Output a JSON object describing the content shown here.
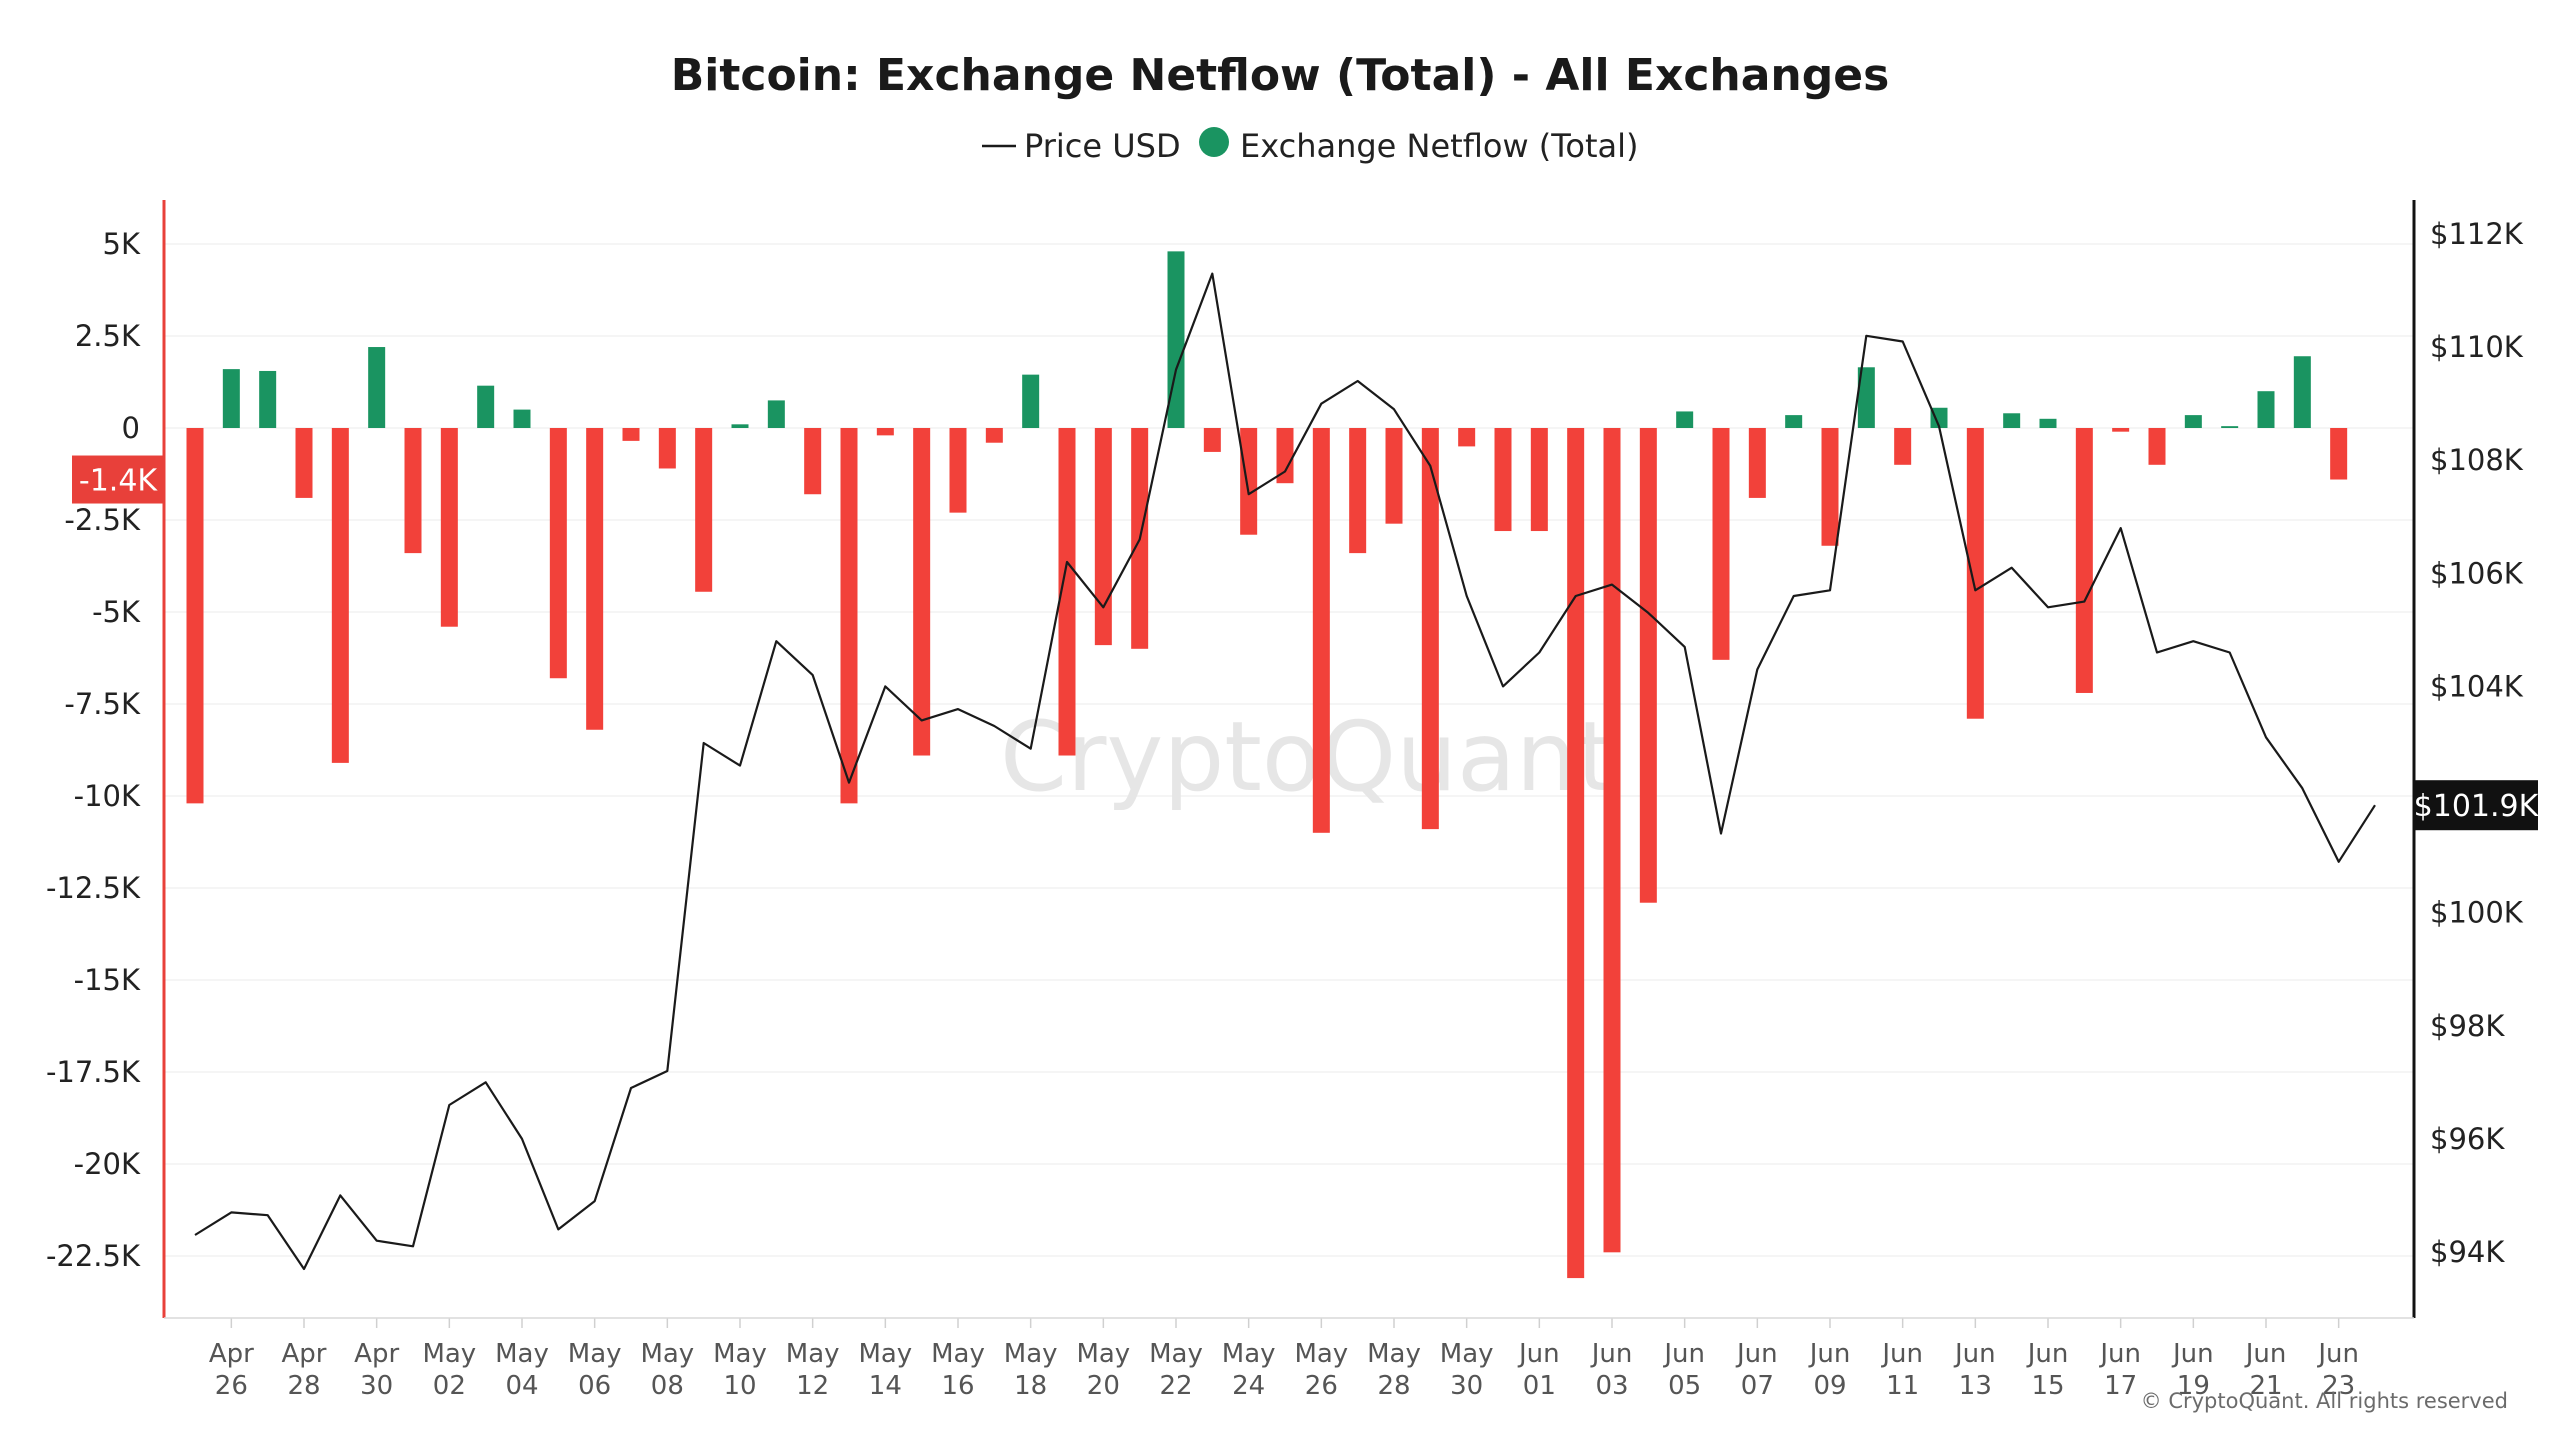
{
  "chart_data": {
    "type": "bar",
    "title": "Bitcoin: Exchange Netflow (Total) - All Exchanges",
    "legend": {
      "placement": "top-center",
      "items": [
        {
          "marker": "line",
          "label": "Price USD"
        },
        {
          "marker": "dot",
          "label": "Exchange Netflow (Total)"
        }
      ]
    },
    "colors": {
      "positive": "#1a9461",
      "negative": "#f2413a",
      "price_line": "#1a1a1a",
      "left_axis": "#e8403a",
      "right_axis": "#111111",
      "grid": "#f2f2f2"
    },
    "grid": true,
    "watermark": "CryptoQuant",
    "copyright": "© CryptoQuant. All rights reserved",
    "x_ticks": [
      {
        "date": "2025-04-26",
        "line1": "Apr",
        "line2": "26"
      },
      {
        "date": "2025-04-28",
        "line1": "Apr",
        "line2": "28"
      },
      {
        "date": "2025-04-30",
        "line1": "Apr",
        "line2": "30"
      },
      {
        "date": "2025-05-02",
        "line1": "May",
        "line2": "02"
      },
      {
        "date": "2025-05-04",
        "line1": "May",
        "line2": "04"
      },
      {
        "date": "2025-05-06",
        "line1": "May",
        "line2": "06"
      },
      {
        "date": "2025-05-08",
        "line1": "May",
        "line2": "08"
      },
      {
        "date": "2025-05-10",
        "line1": "May",
        "line2": "10"
      },
      {
        "date": "2025-05-12",
        "line1": "May",
        "line2": "12"
      },
      {
        "date": "2025-05-14",
        "line1": "May",
        "line2": "14"
      },
      {
        "date": "2025-05-16",
        "line1": "May",
        "line2": "16"
      },
      {
        "date": "2025-05-18",
        "line1": "May",
        "line2": "18"
      },
      {
        "date": "2025-05-20",
        "line1": "May",
        "line2": "20"
      },
      {
        "date": "2025-05-22",
        "line1": "May",
        "line2": "22"
      },
      {
        "date": "2025-05-24",
        "line1": "May",
        "line2": "24"
      },
      {
        "date": "2025-05-26",
        "line1": "May",
        "line2": "26"
      },
      {
        "date": "2025-05-28",
        "line1": "May",
        "line2": "28"
      },
      {
        "date": "2025-05-30",
        "line1": "May",
        "line2": "30"
      },
      {
        "date": "2025-06-01",
        "line1": "Jun",
        "line2": "01"
      },
      {
        "date": "2025-06-03",
        "line1": "Jun",
        "line2": "03"
      },
      {
        "date": "2025-06-05",
        "line1": "Jun",
        "line2": "05"
      },
      {
        "date": "2025-06-07",
        "line1": "Jun",
        "line2": "07"
      },
      {
        "date": "2025-06-09",
        "line1": "Jun",
        "line2": "09"
      },
      {
        "date": "2025-06-11",
        "line1": "Jun",
        "line2": "11"
      },
      {
        "date": "2025-06-13",
        "line1": "Jun",
        "line2": "13"
      },
      {
        "date": "2025-06-15",
        "line1": "Jun",
        "line2": "15"
      },
      {
        "date": "2025-06-17",
        "line1": "Jun",
        "line2": "17"
      },
      {
        "date": "2025-06-19",
        "line1": "Jun",
        "line2": "19"
      },
      {
        "date": "2025-06-21",
        "line1": "Jun",
        "line2": "21"
      },
      {
        "date": "2025-06-23",
        "line1": "Jun",
        "line2": "23"
      }
    ],
    "y_left": {
      "range": [
        -24000,
        6000
      ],
      "ticks": [
        {
          "value": 5000,
          "label": "5K"
        },
        {
          "value": 2500,
          "label": "2.5K"
        },
        {
          "value": 0,
          "label": "0"
        },
        {
          "value": -2500,
          "label": "-2.5K"
        },
        {
          "value": -5000,
          "label": "-5K"
        },
        {
          "value": -7500,
          "label": "-7.5K"
        },
        {
          "value": -10000,
          "label": "-10K"
        },
        {
          "value": -12500,
          "label": "-12.5K"
        },
        {
          "value": -15000,
          "label": "-15K"
        },
        {
          "value": -17500,
          "label": "-17.5K"
        },
        {
          "value": -20000,
          "label": "-20K"
        },
        {
          "value": -22500,
          "label": "-22.5K"
        }
      ],
      "current": {
        "value": -1400,
        "label": "-1.4K"
      }
    },
    "y_right": {
      "range": [
        93000,
        112000
      ],
      "ticks": [
        {
          "value": 112000,
          "label": "$112K"
        },
        {
          "value": 110000,
          "label": "$110K"
        },
        {
          "value": 108000,
          "label": "$108K"
        },
        {
          "value": 106000,
          "label": "$106K"
        },
        {
          "value": 104000,
          "label": "$104K"
        },
        {
          "value": 100000,
          "label": "$100K"
        },
        {
          "value": 98000,
          "label": "$98K"
        },
        {
          "value": 96000,
          "label": "$96K"
        },
        {
          "value": 94000,
          "label": "$94K"
        }
      ],
      "current": {
        "value": 101900,
        "label": "$101.9K"
      }
    },
    "series": [
      {
        "name": "Exchange Netflow (Total)",
        "kind": "bar",
        "points": [
          {
            "date": "2025-04-25",
            "value": -10200
          },
          {
            "date": "2025-04-26",
            "value": 1600
          },
          {
            "date": "2025-04-27",
            "value": 1550
          },
          {
            "date": "2025-04-28",
            "value": -1900
          },
          {
            "date": "2025-04-29",
            "value": -9100
          },
          {
            "date": "2025-04-30",
            "value": 2200
          },
          {
            "date": "2025-05-01",
            "value": -3400
          },
          {
            "date": "2025-05-02",
            "value": -5400
          },
          {
            "date": "2025-05-03",
            "value": 1150
          },
          {
            "date": "2025-05-04",
            "value": 500
          },
          {
            "date": "2025-05-05",
            "value": -6800
          },
          {
            "date": "2025-05-06",
            "value": -8200
          },
          {
            "date": "2025-05-07",
            "value": -350
          },
          {
            "date": "2025-05-08",
            "value": -1100
          },
          {
            "date": "2025-05-09",
            "value": -4450
          },
          {
            "date": "2025-05-10",
            "value": 100
          },
          {
            "date": "2025-05-11",
            "value": 750
          },
          {
            "date": "2025-05-12",
            "value": -1800
          },
          {
            "date": "2025-05-13",
            "value": -10200
          },
          {
            "date": "2025-05-14",
            "value": -200
          },
          {
            "date": "2025-05-15",
            "value": -8900
          },
          {
            "date": "2025-05-16",
            "value": -2300
          },
          {
            "date": "2025-05-17",
            "value": -400
          },
          {
            "date": "2025-05-18",
            "value": 1450
          },
          {
            "date": "2025-05-19",
            "value": -8900
          },
          {
            "date": "2025-05-20",
            "value": -5900
          },
          {
            "date": "2025-05-21",
            "value": -6000
          },
          {
            "date": "2025-05-22",
            "value": 4800
          },
          {
            "date": "2025-05-23",
            "value": -650
          },
          {
            "date": "2025-05-24",
            "value": -2900
          },
          {
            "date": "2025-05-25",
            "value": -1500
          },
          {
            "date": "2025-05-26",
            "value": -11000
          },
          {
            "date": "2025-05-27",
            "value": -3400
          },
          {
            "date": "2025-05-28",
            "value": -2600
          },
          {
            "date": "2025-05-29",
            "value": -10900
          },
          {
            "date": "2025-05-30",
            "value": -500
          },
          {
            "date": "2025-05-31",
            "value": -2800
          },
          {
            "date": "2025-06-01",
            "value": -2800
          },
          {
            "date": "2025-06-02",
            "value": -23100
          },
          {
            "date": "2025-06-03",
            "value": -22400
          },
          {
            "date": "2025-06-04",
            "value": -12900
          },
          {
            "date": "2025-06-05",
            "value": 450
          },
          {
            "date": "2025-06-06",
            "value": -6300
          },
          {
            "date": "2025-06-07",
            "value": -1900
          },
          {
            "date": "2025-06-08",
            "value": 350
          },
          {
            "date": "2025-06-09",
            "value": -3200
          },
          {
            "date": "2025-06-10",
            "value": 1650
          },
          {
            "date": "2025-06-11",
            "value": -1000
          },
          {
            "date": "2025-06-12",
            "value": 550
          },
          {
            "date": "2025-06-13",
            "value": -7900
          },
          {
            "date": "2025-06-14",
            "value": 400
          },
          {
            "date": "2025-06-15",
            "value": 250
          },
          {
            "date": "2025-06-16",
            "value": -7200
          },
          {
            "date": "2025-06-17",
            "value": -100
          },
          {
            "date": "2025-06-18",
            "value": -1000
          },
          {
            "date": "2025-06-19",
            "value": 350
          },
          {
            "date": "2025-06-20",
            "value": 50
          },
          {
            "date": "2025-06-21",
            "value": 1000
          },
          {
            "date": "2025-06-22",
            "value": 1950
          },
          {
            "date": "2025-06-23",
            "value": -1400
          }
        ]
      },
      {
        "name": "Price USD",
        "kind": "line",
        "points": [
          {
            "date": "2025-04-25",
            "value": 94300
          },
          {
            "date": "2025-04-26",
            "value": 94700
          },
          {
            "date": "2025-04-27",
            "value": 94650
          },
          {
            "date": "2025-04-28",
            "value": 93700
          },
          {
            "date": "2025-04-29",
            "value": 95000
          },
          {
            "date": "2025-04-30",
            "value": 94200
          },
          {
            "date": "2025-05-01",
            "value": 94100
          },
          {
            "date": "2025-05-02",
            "value": 96600
          },
          {
            "date": "2025-05-03",
            "value": 97000
          },
          {
            "date": "2025-05-04",
            "value": 96000
          },
          {
            "date": "2025-05-05",
            "value": 94400
          },
          {
            "date": "2025-05-06",
            "value": 94900
          },
          {
            "date": "2025-05-07",
            "value": 96900
          },
          {
            "date": "2025-05-08",
            "value": 97200
          },
          {
            "date": "2025-05-09",
            "value": 103000
          },
          {
            "date": "2025-05-10",
            "value": 102600
          },
          {
            "date": "2025-05-11",
            "value": 104800
          },
          {
            "date": "2025-05-12",
            "value": 104200
          },
          {
            "date": "2025-05-13",
            "value": 102300
          },
          {
            "date": "2025-05-14",
            "value": 104000
          },
          {
            "date": "2025-05-15",
            "value": 103400
          },
          {
            "date": "2025-05-16",
            "value": 103600
          },
          {
            "date": "2025-05-17",
            "value": 103300
          },
          {
            "date": "2025-05-18",
            "value": 102900
          },
          {
            "date": "2025-05-19",
            "value": 106200
          },
          {
            "date": "2025-05-20",
            "value": 105400
          },
          {
            "date": "2025-05-21",
            "value": 106600
          },
          {
            "date": "2025-05-22",
            "value": 109600
          },
          {
            "date": "2025-05-23",
            "value": 111300
          },
          {
            "date": "2025-05-24",
            "value": 107400
          },
          {
            "date": "2025-05-25",
            "value": 107800
          },
          {
            "date": "2025-05-26",
            "value": 109000
          },
          {
            "date": "2025-05-27",
            "value": 109400
          },
          {
            "date": "2025-05-28",
            "value": 108900
          },
          {
            "date": "2025-05-29",
            "value": 107900
          },
          {
            "date": "2025-05-30",
            "value": 105600
          },
          {
            "date": "2025-05-31",
            "value": 104000
          },
          {
            "date": "2025-06-01",
            "value": 104600
          },
          {
            "date": "2025-06-02",
            "value": 105600
          },
          {
            "date": "2025-06-03",
            "value": 105800
          },
          {
            "date": "2025-06-04",
            "value": 105300
          },
          {
            "date": "2025-06-05",
            "value": 104700
          },
          {
            "date": "2025-06-06",
            "value": 101400
          },
          {
            "date": "2025-06-07",
            "value": 104300
          },
          {
            "date": "2025-06-08",
            "value": 105600
          },
          {
            "date": "2025-06-09",
            "value": 105700
          },
          {
            "date": "2025-06-10",
            "value": 110200
          },
          {
            "date": "2025-06-11",
            "value": 110100
          },
          {
            "date": "2025-06-12",
            "value": 108600
          },
          {
            "date": "2025-06-13",
            "value": 105700
          },
          {
            "date": "2025-06-14",
            "value": 106100
          },
          {
            "date": "2025-06-15",
            "value": 105400
          },
          {
            "date": "2025-06-16",
            "value": 105500
          },
          {
            "date": "2025-06-17",
            "value": 106800
          },
          {
            "date": "2025-06-18",
            "value": 104600
          },
          {
            "date": "2025-06-19",
            "value": 104800
          },
          {
            "date": "2025-06-20",
            "value": 104600
          },
          {
            "date": "2025-06-21",
            "value": 103100
          },
          {
            "date": "2025-06-22",
            "value": 102200
          },
          {
            "date": "2025-06-23",
            "value": 100900
          },
          {
            "date": "2025-06-24",
            "value": 101900
          }
        ]
      }
    ]
  }
}
